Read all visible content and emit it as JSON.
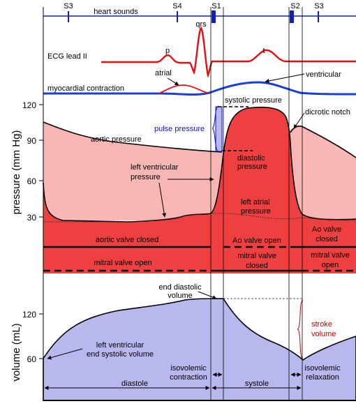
{
  "colors": {
    "ecg": "#e01010",
    "myocardial": "#1a3fd8",
    "heart_sounds": "#1020c0",
    "aortic_fill": "#f8b6b4",
    "ventricle_fill": "#ee4040",
    "volume_fill": "#b8b8ee",
    "pulse_pressure": "#1010c0",
    "stroke_volume": "#c00000"
  },
  "heart_sounds": {
    "label": "heart sounds",
    "markers": [
      "S3",
      "S4",
      "S1",
      "S2",
      "S3"
    ]
  },
  "ecg": {
    "label": "ECG lead II",
    "waves": {
      "p": "p",
      "qrs": "qrs",
      "t": "t"
    }
  },
  "myocardial": {
    "label": "myocardial contraction",
    "atrial": "atrial",
    "ventricular": "ventricular"
  },
  "pressure": {
    "axis_label": "pressure (mm Hg)",
    "ticks": [
      "120",
      "90",
      "60",
      "30"
    ],
    "labels": {
      "systolic": "systolic pressure",
      "dicrotic": "dicrotic notch",
      "pulse": "pulse pressure",
      "aortic": "aortic pressure",
      "diastolic_1": "diastolic",
      "diastolic_2": "pressure",
      "lv_1": "left ventricular",
      "lv_2": "pressure",
      "la_1": "left atrial",
      "la_2": "pressure"
    }
  },
  "valves": {
    "aortic_closed": "aortic valve closed",
    "ao_open": "Ao valve open",
    "ao_closed_1": "Ao valve",
    "ao_closed_2": "closed",
    "mitral_open": "mitral valve open",
    "mitral_closed_1": "mitral valve",
    "mitral_closed_2": "closed",
    "mitral_open2_1": "mitral valve",
    "mitral_open2_2": "open"
  },
  "volume": {
    "axis_label": "volume (mL)",
    "ticks": [
      "120",
      "60"
    ],
    "labels": {
      "edv_1": "end diastolic",
      "edv_2": "volume",
      "esv_1": "left ventricular",
      "esv_2": "end systolic volume",
      "stroke_1": "stroke",
      "stroke_2": "volume"
    }
  },
  "phases": {
    "isovolemic_contraction_1": "isovolemic",
    "isovolemic_contraction_2": "contraction",
    "isovolemic_relaxation_1": "isovolemic",
    "isovolemic_relaxation_2": "relaxation",
    "diastole": "diastole",
    "systole": "systole"
  }
}
